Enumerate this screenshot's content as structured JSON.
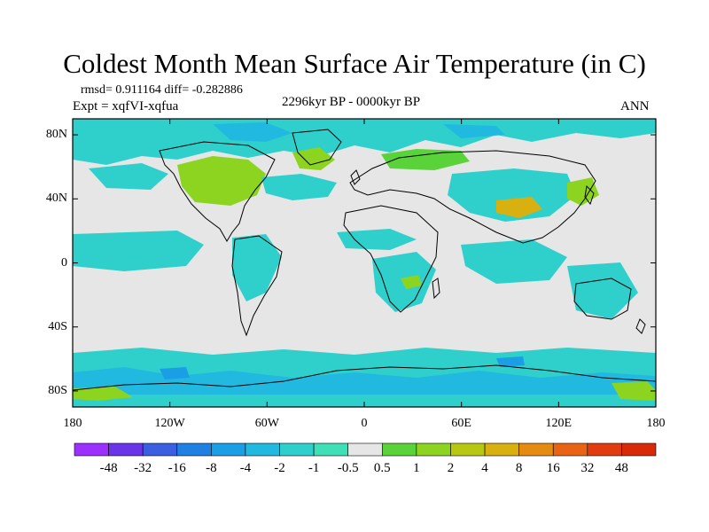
{
  "title": "Coldest Month Mean Surface Air Temperature (in C)",
  "stats_line": "rmsd= 0.911164  diff= -0.282886",
  "expt_line": "Expt = xqfVI-xqfua",
  "period": "2296kyr BP - 0000kyr BP",
  "season": "ANN",
  "map": {
    "lon_range": [
      -180,
      180
    ],
    "lat_range": [
      -90,
      90
    ],
    "x_ticks": [
      {
        "lon": -180,
        "label": "180"
      },
      {
        "lon": -120,
        "label": "120W"
      },
      {
        "lon": -60,
        "label": "60W"
      },
      {
        "lon": 0,
        "label": "0"
      },
      {
        "lon": 60,
        "label": "60E"
      },
      {
        "lon": 120,
        "label": "120E"
      },
      {
        "lon": 180,
        "label": "180"
      }
    ],
    "y_ticks": [
      {
        "lat": 80,
        "label": "80N"
      },
      {
        "lat": 40,
        "label": "40N"
      },
      {
        "lat": 0,
        "label": "0"
      },
      {
        "lat": -40,
        "label": "40S"
      },
      {
        "lat": -80,
        "label": "80S"
      }
    ],
    "background_color": "#e6e6e6",
    "coastline_color": "#000000"
  },
  "colorbar": {
    "labels": [
      "-48",
      "-32",
      "-16",
      "-8",
      "-4",
      "-2",
      "-1",
      "-0.5",
      "0.5",
      "1",
      "2",
      "4",
      "8",
      "16",
      "32",
      "48"
    ],
    "colors": [
      "#9b30ff",
      "#6a35e8",
      "#3a5fe0",
      "#1f7fe3",
      "#1a9ee6",
      "#22b9e0",
      "#2fd0cc",
      "#3fe0b8",
      "#e6e6e6",
      "#5ad23a",
      "#8cd420",
      "#b8c812",
      "#d8b010",
      "#e58b12",
      "#e86414",
      "#e03c10",
      "#d82a08"
    ]
  },
  "anomaly_levels": {
    "negative": "#2fd0cc",
    "negative_strong": "#22b9e0",
    "negative_stronger": "#1a9ee6",
    "positive": "#8cd420",
    "positive_weak": "#5ad23a",
    "positive_strong": "#d8b010"
  }
}
